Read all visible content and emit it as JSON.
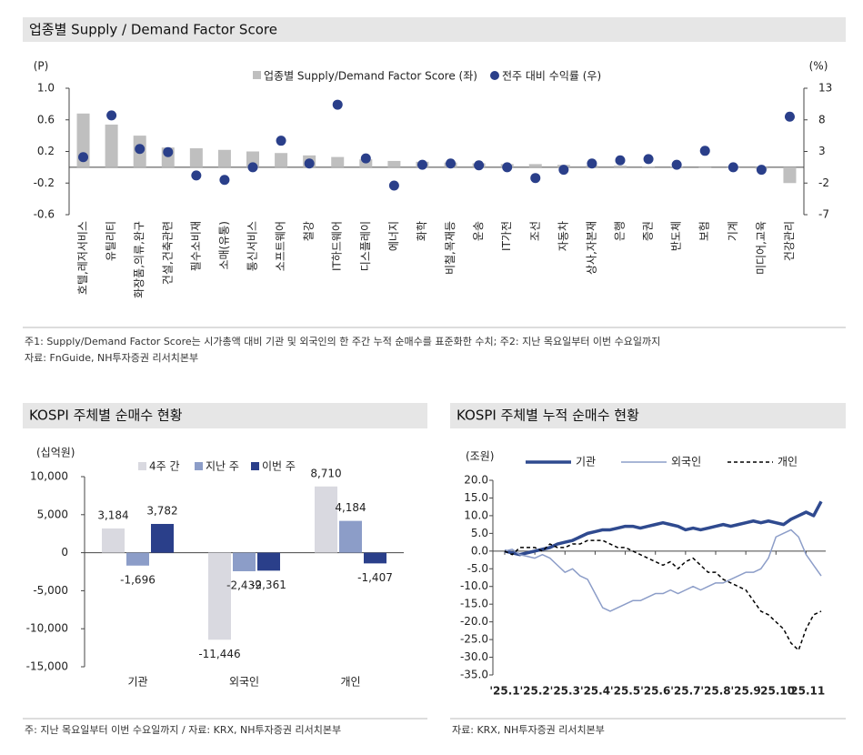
{
  "chart_data": [
    {
      "type": "combo",
      "title": "업종별 Supply / Demand Factor Score",
      "y_unit": "(P)",
      "y2_unit": "(%)",
      "categories": [
        "호텔,레저서비스",
        "유틸리티",
        "화장품,의류,완구",
        "건설,건축관련",
        "필수소비재",
        "소매(유통)",
        "통신서비스",
        "소프트웨어",
        "철강",
        "IT하드웨어",
        "디스플레이",
        "에너지",
        "화학",
        "비철,목재등",
        "운송",
        "IT가전",
        "조선",
        "자동차",
        "상사,자본재",
        "은행",
        "증권",
        "반도체",
        "보험",
        "기계",
        "미디어,교육",
        "건강관리"
      ],
      "series": [
        {
          "name": "업종별 Supply/Demand Factor Score (좌)",
          "type": "bar",
          "color": "#bfbfbf",
          "values": [
            0.68,
            0.54,
            0.4,
            0.25,
            0.24,
            0.22,
            0.2,
            0.18,
            0.15,
            0.13,
            0.1,
            0.08,
            0.07,
            0.06,
            0.05,
            0.04,
            0.04,
            0.03,
            0.02,
            0.02,
            0.01,
            0.01,
            -0.01,
            -0.01,
            -0.02,
            -0.2
          ]
        },
        {
          "name": "전주 대비 수익률 (우)",
          "type": "scatter",
          "axis": "y2",
          "color": "#2a3f8a",
          "values": [
            2.1,
            8.7,
            3.4,
            2.9,
            -0.8,
            -1.5,
            0.5,
            4.7,
            1.1,
            10.4,
            1.9,
            -2.4,
            0.9,
            1.1,
            0.8,
            0.5,
            -1.2,
            0.1,
            1.1,
            1.6,
            1.8,
            0.9,
            3.1,
            0.5,
            0.1,
            8.5
          ]
        }
      ],
      "ylim": [
        -0.6,
        1.0
      ],
      "yticks": [
        {
          "value": 1.0,
          "label": "1.0"
        },
        0.6,
        0.2,
        -0.2,
        -0.6
      ],
      "y2lim": [
        -7,
        13
      ],
      "y2ticks": [
        13,
        8,
        3,
        -2,
        -7
      ],
      "notes": [
        "주1: Supply/Demand Factor Score는 시가총액 대비 기관 및 외국인의 한 주간 누적 순매수를 표준화한 수치; 주2: 지난 목요일부터 이번 수요일까지",
        "자료: FnGuide, NH투자증권 리서치본부"
      ]
    },
    {
      "type": "bar",
      "title": "KOSPI 주체별 순매수 현황",
      "y_unit": "(십억원)",
      "categories": [
        "기관",
        "외국인",
        "개인"
      ],
      "series": [
        {
          "name": "4주 간",
          "color": "#d9d9e0",
          "values": [
            3184,
            -11446,
            8710
          ],
          "value_labels": [
            "3,184",
            "-11,446",
            "8,710"
          ]
        },
        {
          "name": "지난 주",
          "color": "#8c9dc8",
          "values": [
            -1696,
            -2439,
            4184
          ],
          "value_labels": [
            "-1,696",
            "-2,439",
            "4,184"
          ]
        },
        {
          "name": "이번 주",
          "color": "#2a3f8a",
          "values": [
            3782,
            -2361,
            -1407
          ],
          "value_labels": [
            "3,782",
            "-2,361",
            "-1,407"
          ]
        }
      ],
      "ylim": [
        -15000,
        10000
      ],
      "yticks": [
        {
          "value": 10000,
          "label": "10,000"
        },
        {
          "value": 5000,
          "label": "5,000"
        },
        0,
        {
          "value": -5000,
          "label": "-5,000"
        },
        {
          "value": -10000,
          "label": "-10,000"
        },
        {
          "value": -15000,
          "label": "-15,000"
        }
      ],
      "notes": [
        "주: 지난 목요일부터 이번 수요일까지 / 자료: KRX, NH투자증권 리서치본부"
      ]
    },
    {
      "type": "line",
      "title": "KOSPI 주체별 누적 순매수 현황",
      "y_unit": "(조원)",
      "categories": [
        "'25.1",
        null,
        null,
        null,
        "'25.2",
        null,
        null,
        null,
        "'25.3",
        null,
        null,
        null,
        "'25.4",
        null,
        null,
        null,
        "'25.5",
        null,
        null,
        null,
        "'25.6",
        null,
        null,
        null,
        "'25.7",
        null,
        null,
        null,
        "'25.8",
        null,
        null,
        null,
        "'25.9",
        null,
        null,
        null,
        "'25.10",
        null,
        null,
        null,
        "'25.11",
        null,
        null
      ],
      "series": [
        {
          "name": "기관",
          "color": "#2f4a8f",
          "line_style": "solid",
          "line_width": 3.5,
          "values": [
            0,
            -0.5,
            -1,
            -0.5,
            0,
            0.5,
            1,
            2,
            2.5,
            3,
            4,
            5,
            5.5,
            6,
            6,
            6.5,
            7,
            7,
            6.5,
            7,
            7.5,
            8,
            7.5,
            7,
            6,
            6.5,
            6,
            6.5,
            7,
            7.5,
            7,
            7.5,
            8,
            8.5,
            8,
            8.5,
            8,
            7.5,
            9,
            10,
            11,
            10,
            14
          ]
        },
        {
          "name": "외국인",
          "color": "#8c9dc8",
          "line_style": "solid",
          "line_width": 1.5,
          "values": [
            0,
            0.5,
            -1,
            -1.5,
            -2,
            -1,
            -2,
            -4,
            -6,
            -5,
            -7,
            -8,
            -12,
            -16,
            -17,
            -16,
            -15,
            -14,
            -14,
            -13,
            -12,
            -12,
            -11,
            -12,
            -11,
            -10,
            -11,
            -10,
            -9,
            -9,
            -8,
            -7,
            -6,
            -6,
            -5,
            -2,
            4,
            5,
            6,
            4,
            -1,
            -4,
            -7
          ]
        },
        {
          "name": "개인",
          "color": "#000000",
          "line_style": "dashed",
          "line_width": 1.5,
          "values": [
            0,
            -1,
            1,
            1,
            1,
            0,
            2,
            1,
            1,
            2,
            2,
            3,
            3,
            3,
            2,
            1,
            1,
            0,
            -1,
            -2,
            -3,
            -4,
            -3,
            -5,
            -3,
            -2,
            -4,
            -6,
            -6,
            -8,
            -9,
            -10,
            -11,
            -14,
            -17,
            -18,
            -20,
            -22,
            -26,
            -28,
            -22,
            -18,
            -17
          ]
        }
      ],
      "ylim": [
        -35,
        20
      ],
      "yticks": [
        {
          "value": 20,
          "label": "20.0"
        },
        {
          "value": 15,
          "label": "15.0"
        },
        {
          "value": 10,
          "label": "10.0"
        },
        {
          "value": 5,
          "label": "5.0"
        },
        {
          "value": 0,
          "label": "0.0"
        },
        {
          "value": -5,
          "label": "-5.0"
        },
        {
          "value": -10,
          "label": "-10.0"
        },
        {
          "value": -15,
          "label": "-15.0"
        },
        {
          "value": -20,
          "label": "-20.0"
        },
        {
          "value": -25,
          "label": "-25.0"
        },
        {
          "value": -30,
          "label": "-30.0"
        },
        {
          "value": -35,
          "label": "-35.0"
        }
      ],
      "notes": [
        "자료: KRX, NH투자증권 리서치본부"
      ]
    }
  ]
}
